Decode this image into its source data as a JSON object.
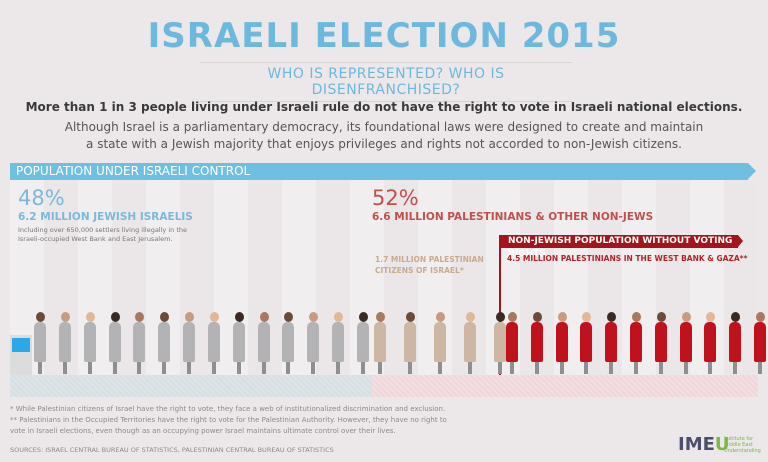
{
  "header": {
    "title": "ISRAELI ELECTION 2015",
    "subtitle": "WHO IS REPRESENTED? WHO IS DISENFRANCHISED?"
  },
  "intro": {
    "lead": "More than 1 in 3 people living under Israeli rule do not have the right to vote in Israeli national elections.",
    "line1": "Although Israel is a parliamentary democracy, its foundational laws were designed to create and maintain",
    "line2": "a state with a Jewish majority that enjoys privileges and rights not accorded to non-Jewish citizens."
  },
  "banner": "POPULATION UNDER ISRAELI CONTROL",
  "jewish": {
    "percent": "48%",
    "label": "6.2 MILLION JEWISH ISRAELIS",
    "note_line1": "Including over 650,000 settlers living illegally in the",
    "note_line2": "Israeli-occupied West Bank and East Jerusalem."
  },
  "nonjewish": {
    "percent": "52%",
    "label": "6.6 MILLION PALESTINIANS & OTHER NON-JEWS",
    "citizens_line1": "1.7 MILLION PALESTINIAN",
    "citizens_line2": "CITIZENS OF ISRAEL*",
    "no_vote_banner": "NON-JEWISH POPULATION WITHOUT VOTING RIGHTS",
    "occupied": "4.5 MILLION PALESTINIANS IN THE WEST BANK & GAZA**"
  },
  "figures": {
    "jewish_count": 14,
    "citizens_count": 5,
    "occupied_count": 11,
    "colors": {
      "jewish": "#b3b3b5",
      "citizens": "#cdb6a3",
      "occupied": "#c0121c"
    }
  },
  "footnotes": {
    "note1": "* While Palestinian citizens of Israel have the right to vote, they face a web of institutionalized discrimination and exclusion.",
    "note2": "** Palestinians in the Occupied Territories have the right to vote for the Palestinian Authority. However, they have no right to",
    "note3": "vote in Israeli elections, even though as an occupying power Israel maintains ultimate control over their lives.",
    "sources": "SOURCES: ISRAEL CENTRAL BUREAU OF STATISTICS, PALESTINIAN CENTRAL BUREAU OF STATISTICS"
  },
  "logo": {
    "mark_a": "IME",
    "mark_b": "U",
    "line1": "Institute for",
    "line2": "Middle East",
    "line3": "Understanding"
  }
}
